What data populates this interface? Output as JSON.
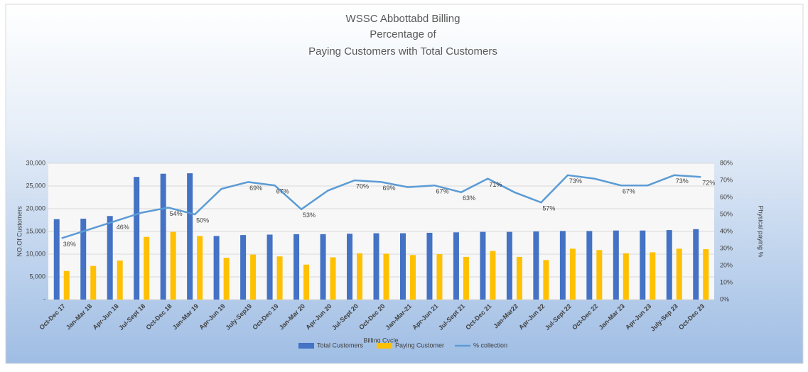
{
  "chart_data": {
    "type": "bar",
    "title": [
      "WSSC Abbottabd Billing",
      "Percentage of",
      "Paying  Customers with Total Customers"
    ],
    "x_label": "Billing Cycle",
    "y_label": "NO.Of Customers",
    "y2_label": "Physical paying  %",
    "categories": [
      "Oct-Dec 17",
      "Jan-Mar 18",
      "Apr-Jun 18",
      "Jul-Sept 18",
      "Oct-Dec 18",
      "Jan-Mar 19",
      "Apr-Jun 19",
      "July-Sep19",
      "Oct-Dec 19",
      "Jan-Mar 20",
      "Apr-Jun 20",
      "Jul-Sept 20",
      "Oct-Dec 20",
      "Jan-Mar-21",
      "Apr-Jun 21",
      "Jul-Sept 21",
      "Oct-Dec 21",
      "Jan-Mar22",
      "Apr-Jun 22",
      "Jul-Sept 22",
      "Oct-Dec 22",
      "Jan-Mar 23",
      "Apr-Jun 23",
      "July-Sep 23",
      "Oct-Dec 23"
    ],
    "series": [
      {
        "name": "Total Customers",
        "type": "bar",
        "color": "#4472c4",
        "axis": "y",
        "values": [
          17700,
          17800,
          18400,
          27000,
          27700,
          27800,
          14000,
          14200,
          14300,
          14400,
          14400,
          14500,
          14600,
          14600,
          14700,
          14800,
          14900,
          14900,
          15000,
          15100,
          15100,
          15200,
          15200,
          15300,
          15500
        ]
      },
      {
        "name": "Paying Customer",
        "type": "bar",
        "color": "#ffc000",
        "axis": "y",
        "values": [
          6300,
          7400,
          8600,
          13800,
          14900,
          14000,
          9200,
          9900,
          9500,
          7700,
          9300,
          10200,
          10100,
          9800,
          10000,
          9400,
          10700,
          9400,
          8700,
          11200,
          10900,
          10200,
          10400,
          11200,
          11100
        ]
      },
      {
        "name": "% collection",
        "type": "line",
        "color": "#5b9bd5",
        "axis": "y2",
        "values": [
          36,
          41,
          46,
          51,
          54,
          50,
          65,
          69,
          67,
          53,
          64,
          70,
          69,
          66,
          67,
          63,
          71,
          63,
          57,
          73,
          71,
          67,
          67,
          73,
          72
        ],
        "value_labels": [
          "36%",
          null,
          "46%",
          null,
          "54%",
          "50%",
          null,
          "69%",
          "67%",
          "53%",
          null,
          "70%",
          "69%",
          null,
          "67%",
          "63%",
          "71%",
          null,
          "57%",
          "73%",
          null,
          "67%",
          null,
          "73%",
          "72%"
        ]
      }
    ],
    "ylim": [
      0,
      30000
    ],
    "yticks": [
      {
        "value": 0,
        "label": "-"
      },
      {
        "value": 5000,
        "label": "5,000"
      },
      {
        "value": 10000,
        "label": "10,000"
      },
      {
        "value": 15000,
        "label": "15,000"
      },
      {
        "value": 20000,
        "label": "20,000"
      },
      {
        "value": 25000,
        "label": "25,000"
      },
      {
        "value": 30000,
        "label": "30,000"
      }
    ],
    "y2lim": [
      0,
      80
    ],
    "y2ticks": [
      {
        "value": 0,
        "label": "0%"
      },
      {
        "value": 10,
        "label": "10%"
      },
      {
        "value": 20,
        "label": "20%"
      },
      {
        "value": 30,
        "label": "30%"
      },
      {
        "value": 40,
        "label": "40%"
      },
      {
        "value": 50,
        "label": "50%"
      },
      {
        "value": 60,
        "label": "60%"
      },
      {
        "value": 70,
        "label": "70%"
      },
      {
        "value": 80,
        "label": "80%"
      }
    ],
    "grid": true,
    "legend": "bottom"
  }
}
